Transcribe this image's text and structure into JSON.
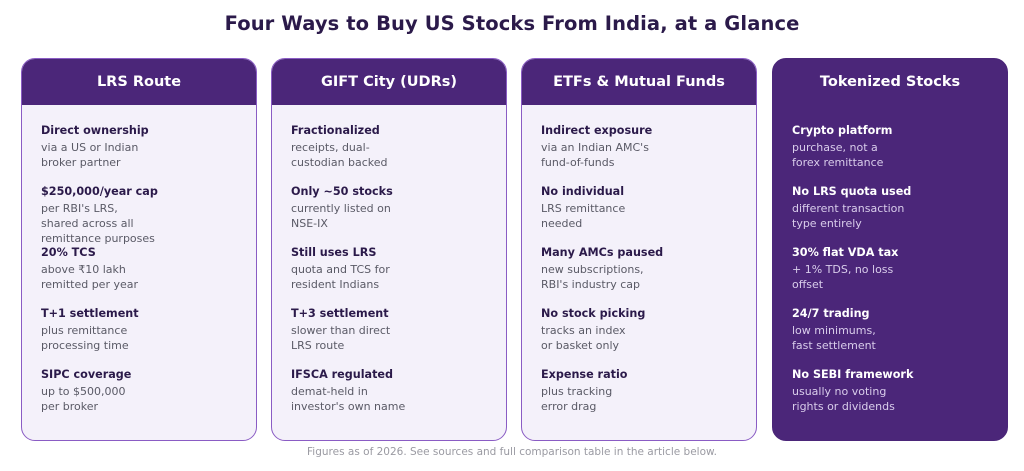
{
  "title": "Four Ways to Buy US Stocks From India, at a Glance",
  "cards": [
    {
      "heading": "LRS Route",
      "items": [
        {
          "title": "Direct ownership",
          "desc": "via a US or Indian\nbroker partner"
        },
        {
          "title": "$250,000/year cap",
          "desc": "per RBI's LRS,\nshared across all\nremittance purposes"
        },
        {
          "title": "20% TCS",
          "desc": "above ₹10 lakh\nremitted per year"
        },
        {
          "title": "T+1 settlement",
          "desc": "plus remittance\nprocessing time"
        },
        {
          "title": "SIPC coverage",
          "desc": "up to $500,000\nper broker"
        }
      ]
    },
    {
      "heading": "GIFT City (UDRs)",
      "items": [
        {
          "title": "Fractionalized",
          "desc": "receipts, dual-\ncustodian backed"
        },
        {
          "title": "Only ~50 stocks",
          "desc": "currently listed on\nNSE-IX"
        },
        {
          "title": "Still uses LRS",
          "desc": "quota and TCS for\nresident Indians"
        },
        {
          "title": "T+3 settlement",
          "desc": "slower than direct\nLRS route"
        },
        {
          "title": "IFSCA regulated",
          "desc": "demat-held in\ninvestor's own name"
        }
      ]
    },
    {
      "heading": "ETFs & Mutual Funds",
      "items": [
        {
          "title": "Indirect exposure",
          "desc": "via an Indian AMC's\nfund-of-funds"
        },
        {
          "title": "No individual",
          "desc": "LRS remittance\nneeded"
        },
        {
          "title": "Many AMCs paused",
          "desc": "new subscriptions,\nRBI's industry cap"
        },
        {
          "title": "No stock picking",
          "desc": "tracks an index\nor basket only"
        },
        {
          "title": "Expense ratio",
          "desc": "plus tracking\nerror drag"
        }
      ]
    },
    {
      "heading": "Tokenized Stocks",
      "items": [
        {
          "title": "Crypto platform",
          "desc": "purchase, not a\nforex remittance"
        },
        {
          "title": "No LRS quota used",
          "desc": "different transaction\ntype entirely"
        },
        {
          "title": "30% flat VDA tax",
          "desc": "+ 1% TDS, no loss\noffset"
        },
        {
          "title": "24/7 trading",
          "desc": "low minimums,\nfast settlement"
        },
        {
          "title": "No SEBI framework",
          "desc": "usually no voting\nrights or dividends"
        }
      ]
    }
  ],
  "footer": "Figures as of 2026. See sources and full comparison table in the article below."
}
